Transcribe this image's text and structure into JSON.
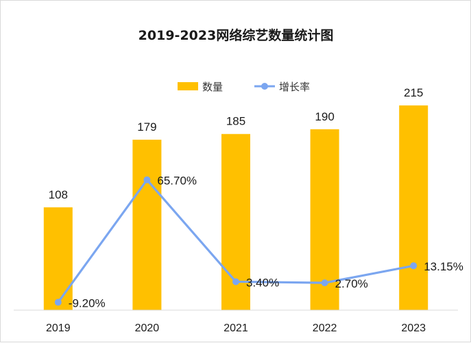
{
  "chart_data": {
    "type": "bar",
    "title": "2019-2023网络综艺数量统计图",
    "categories": [
      "2019",
      "2020",
      "2021",
      "2022",
      "2023"
    ],
    "series": [
      {
        "name": "数量",
        "type": "bar",
        "values": [
          108,
          179,
          185,
          190,
          215
        ],
        "labels": [
          "108",
          "179",
          "185",
          "190",
          "215"
        ],
        "color": "#FFC000"
      },
      {
        "name": "增长率",
        "type": "line",
        "values": [
          -9.2,
          65.7,
          3.4,
          2.7,
          13.15
        ],
        "labels": [
          "-9.20%",
          "65.70%",
          "3.40%",
          "2.70%",
          "13.15%"
        ],
        "color": "#7BA6F0"
      }
    ],
    "legend_position": "top-center",
    "grid": false,
    "ylim_bar": [
      0,
      215
    ],
    "ylim_line": [
      -14,
      120
    ]
  }
}
